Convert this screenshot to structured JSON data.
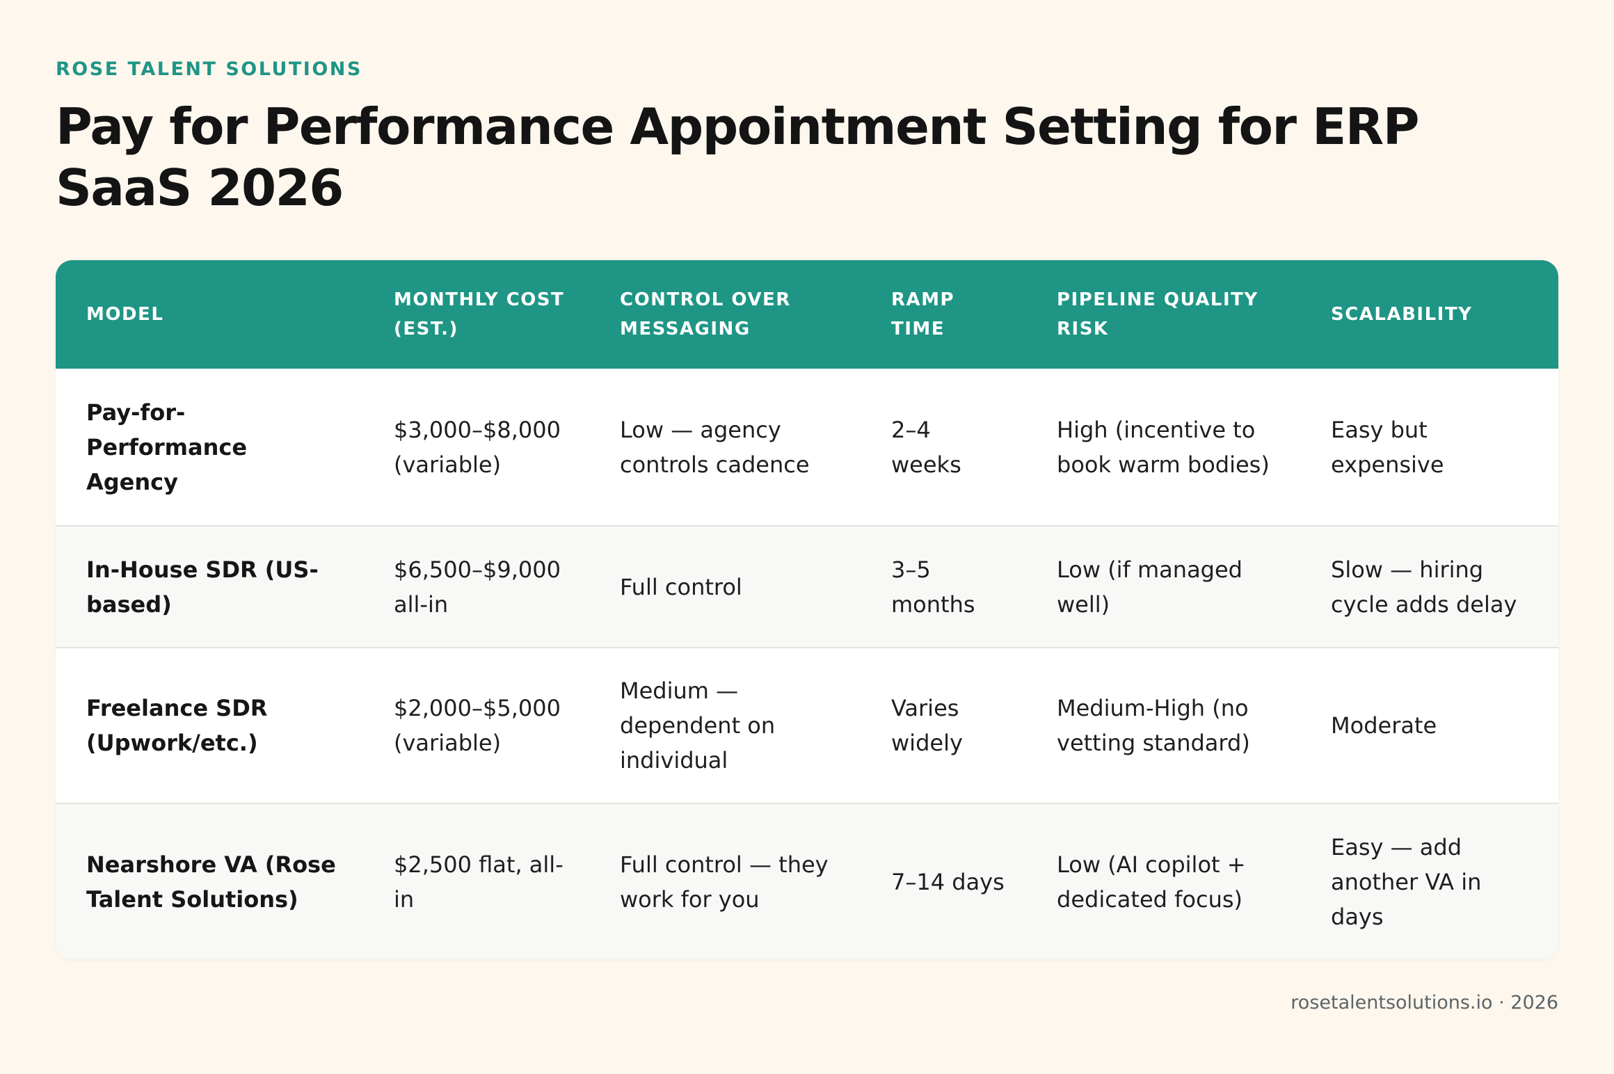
{
  "brand": "ROSE TALENT SOLUTIONS",
  "title": "Pay for Performance Appointment Setting for ERP SaaS 2026",
  "table": {
    "headers": [
      "MODEL",
      "MONTHLY COST (EST.)",
      "CONTROL OVER MESSAGING",
      "RAMP TIME",
      "PIPELINE QUALITY RISK",
      "SCALABILITY"
    ],
    "rows": [
      [
        "Pay-for-Performance Agency",
        "$3,000–$8,000 (variable)",
        "Low — agency controls cadence",
        "2–4 weeks",
        "High (incentive to book warm bodies)",
        "Easy but expensive"
      ],
      [
        "In-House SDR (US-based)",
        "$6,500–$9,000 all-in",
        "Full control",
        "3–5 months",
        "Low (if managed well)",
        "Slow — hiring cycle adds delay"
      ],
      [
        "Freelance SDR (Upwork/etc.)",
        "$2,000–$5,000 (variable)",
        "Medium — dependent on individual",
        "Varies widely",
        "Medium-High (no vetting standard)",
        "Moderate"
      ],
      [
        "Nearshore VA (Rose Talent Solutions)",
        "$2,500 flat, all-in",
        "Full control — they work for you",
        "7–14 days",
        "Low (AI copilot + dedicated focus)",
        "Easy — add another VA in days"
      ]
    ]
  },
  "footer": "rosetalentsolutions.io · 2026",
  "colors": {
    "accent": "#1f9585",
    "background": "#fdf7ee"
  }
}
